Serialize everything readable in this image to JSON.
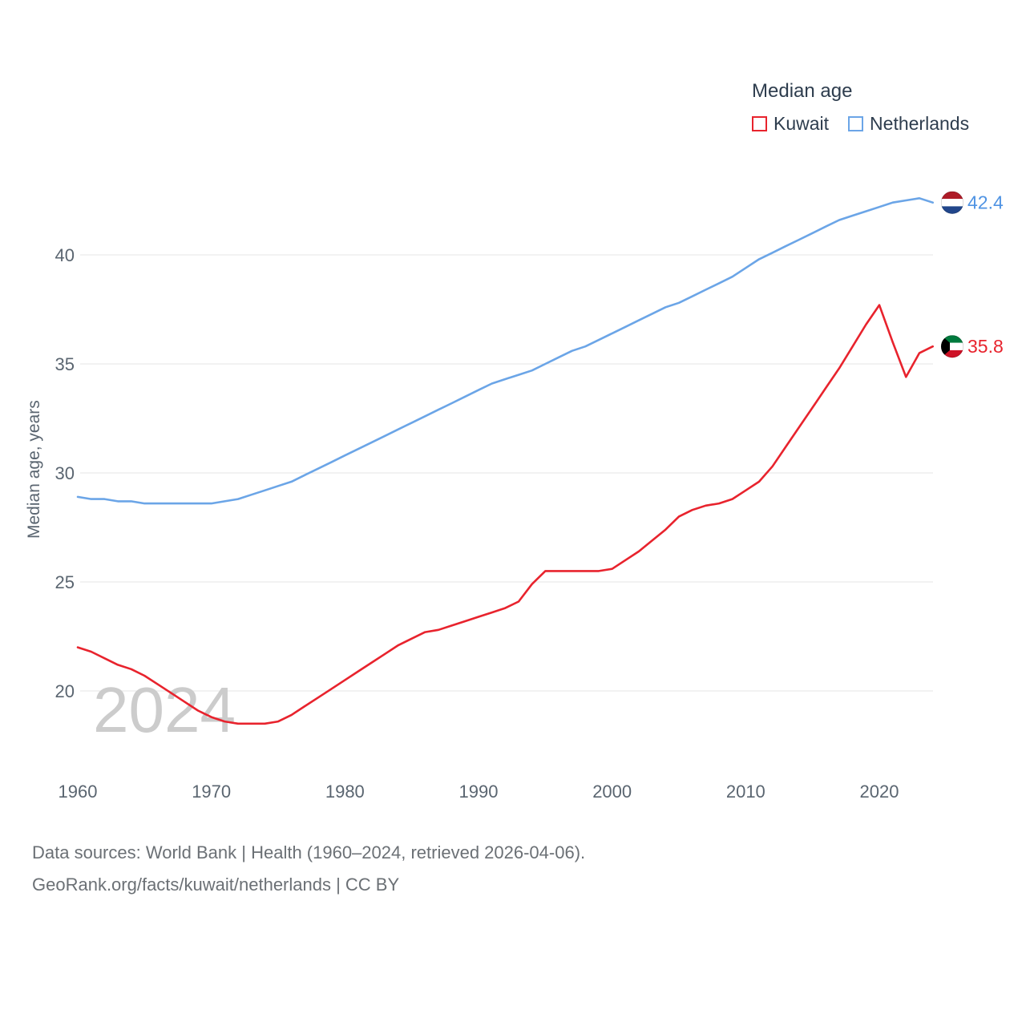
{
  "legend": {
    "title": "Median age",
    "items": [
      {
        "label": "Kuwait",
        "color": "#e8232d"
      },
      {
        "label": "Netherlands",
        "color": "#6ba5e7"
      }
    ]
  },
  "watermark": "2024",
  "footer": {
    "line1": "Data sources: World Bank | Health (1960–2024, retrieved 2026-04-06).",
    "line2": "GeoRank.org/facts/kuwait/netherlands | CC BY"
  },
  "palette": {
    "background": "#ffffff",
    "grid": "#e4e4e4",
    "tick_text": "#5a6570",
    "legend_text": "#2e3d4e",
    "footer_text": "#6b7075",
    "watermark": "#cccccc"
  },
  "flags": {
    "netherlands": {
      "stripes": [
        "#AE1C28",
        "#FFFFFF",
        "#21468B"
      ]
    },
    "kuwait": {
      "stripes": [
        "#007A3D",
        "#FFFFFF",
        "#CE1126"
      ],
      "hoist": "#000000"
    }
  },
  "chart_data": {
    "type": "line",
    "title": "Median age",
    "xlabel": "",
    "ylabel": "Median age, years",
    "grid": true,
    "legend_position": "top-right",
    "ylim": [
      18,
      43.5
    ],
    "yticks": [
      20,
      25,
      30,
      35,
      40
    ],
    "xticks": [
      1960,
      1970,
      1980,
      1990,
      2000,
      2010,
      2020
    ],
    "years": [
      1960,
      1961,
      1962,
      1963,
      1964,
      1965,
      1966,
      1967,
      1968,
      1969,
      1970,
      1971,
      1972,
      1973,
      1974,
      1975,
      1976,
      1977,
      1978,
      1979,
      1980,
      1981,
      1982,
      1983,
      1984,
      1985,
      1986,
      1987,
      1988,
      1989,
      1990,
      1991,
      1992,
      1993,
      1994,
      1995,
      1996,
      1997,
      1998,
      1999,
      2000,
      2001,
      2002,
      2003,
      2004,
      2005,
      2006,
      2007,
      2008,
      2009,
      2010,
      2011,
      2012,
      2013,
      2014,
      2015,
      2016,
      2017,
      2018,
      2019,
      2020,
      2021,
      2022,
      2023,
      2024
    ],
    "series": [
      {
        "name": "Kuwait",
        "color": "#e8232d",
        "label_color": "#e8232d",
        "flag": "kuwait",
        "end_value": "35.8",
        "values": [
          22.0,
          21.8,
          21.5,
          21.2,
          21.0,
          20.7,
          20.3,
          19.9,
          19.5,
          19.1,
          18.8,
          18.6,
          18.5,
          18.5,
          18.5,
          18.6,
          18.9,
          19.3,
          19.7,
          20.1,
          20.5,
          20.9,
          21.3,
          21.7,
          22.1,
          22.4,
          22.7,
          22.8,
          23.0,
          23.2,
          23.4,
          23.6,
          23.8,
          24.1,
          24.9,
          25.5,
          25.5,
          25.5,
          25.5,
          25.5,
          25.6,
          26.0,
          26.4,
          26.9,
          27.4,
          28.0,
          28.3,
          28.5,
          28.6,
          28.8,
          29.2,
          29.6,
          30.3,
          31.2,
          32.1,
          33.0,
          33.9,
          34.8,
          35.8,
          36.8,
          37.7,
          36.0,
          34.4,
          35.5,
          35.8
        ]
      },
      {
        "name": "Netherlands",
        "color": "#6ba5e7",
        "label_color": "#4f93e3",
        "flag": "netherlands",
        "end_value": "42.4",
        "values": [
          28.9,
          28.8,
          28.8,
          28.7,
          28.7,
          28.6,
          28.6,
          28.6,
          28.6,
          28.6,
          28.6,
          28.7,
          28.8,
          29.0,
          29.2,
          29.4,
          29.6,
          29.9,
          30.2,
          30.5,
          30.8,
          31.1,
          31.4,
          31.7,
          32.0,
          32.3,
          32.6,
          32.9,
          33.2,
          33.5,
          33.8,
          34.1,
          34.3,
          34.5,
          34.7,
          35.0,
          35.3,
          35.6,
          35.8,
          36.1,
          36.4,
          36.7,
          37.0,
          37.3,
          37.6,
          37.8,
          38.1,
          38.4,
          38.7,
          39.0,
          39.4,
          39.8,
          40.1,
          40.4,
          40.7,
          41.0,
          41.3,
          41.6,
          41.8,
          42.0,
          42.2,
          42.4,
          42.5,
          42.6,
          42.4
        ]
      }
    ]
  }
}
